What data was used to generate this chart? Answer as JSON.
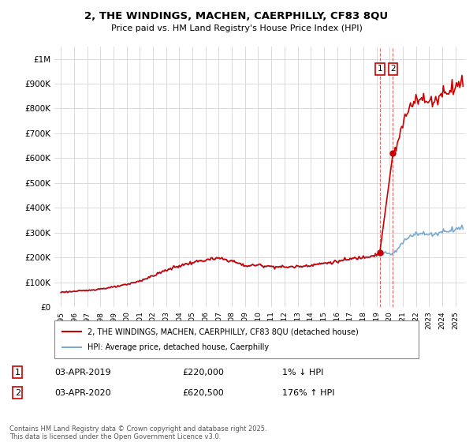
{
  "title": "2, THE WINDINGS, MACHEN, CAERPHILLY, CF83 8QU",
  "subtitle": "Price paid vs. HM Land Registry's House Price Index (HPI)",
  "legend_label_1": "2, THE WINDINGS, MACHEN, CAERPHILLY, CF83 8QU (detached house)",
  "legend_label_2": "HPI: Average price, detached house, Caerphilly",
  "footnote": "Contains HM Land Registry data © Crown copyright and database right 2025.\nThis data is licensed under the Open Government Licence v3.0.",
  "transaction_1_date": "03-APR-2019",
  "transaction_1_price": 220000,
  "transaction_1_hpi": "1% ↓ HPI",
  "transaction_2_date": "03-APR-2020",
  "transaction_2_price": 620500,
  "transaction_2_hpi": "176% ↑ HPI",
  "red_color": "#cc0000",
  "blue_color": "#7aabcf",
  "ylim_min": 0,
  "ylim_max": 1050000,
  "yticks": [
    0,
    100000,
    200000,
    300000,
    400000,
    500000,
    600000,
    700000,
    800000,
    900000,
    1000000
  ],
  "ytick_labels": [
    "£0",
    "£100K",
    "£200K",
    "£300K",
    "£400K",
    "£500K",
    "£600K",
    "£700K",
    "£800K",
    "£900K",
    "£1M"
  ],
  "xlim_min": 1994.5,
  "xlim_max": 2025.8
}
